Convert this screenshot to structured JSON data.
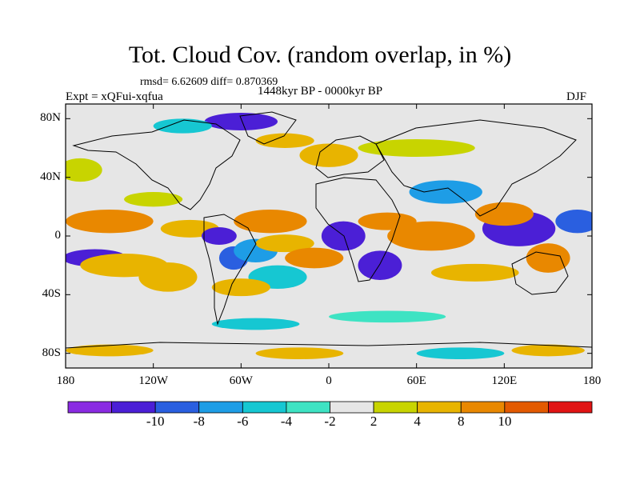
{
  "figure": {
    "title": "Tot. Cloud Cov. (random overlap, in %)",
    "stats": "rmsd= 6.62609 diff= 0.870369",
    "experiment": "Expt = xQFui-xqfua",
    "period": "1448kyr BP - 0000kyr BP",
    "season": "DJF"
  },
  "axes": {
    "lat_ticks": [
      {
        "label": "80N",
        "lat": 80
      },
      {
        "label": "40N",
        "lat": 40
      },
      {
        "label": "0",
        "lat": 0
      },
      {
        "label": "40S",
        "lat": -40
      },
      {
        "label": "80S",
        "lat": -80
      }
    ],
    "lon_ticks": [
      {
        "label": "180",
        "lon": -180
      },
      {
        "label": "120W",
        "lon": -120
      },
      {
        "label": "60W",
        "lon": -60
      },
      {
        "label": "0",
        "lon": 0
      },
      {
        "label": "60E",
        "lon": 60
      },
      {
        "label": "120E",
        "lon": 120
      },
      {
        "label": "180",
        "lon": 180
      }
    ],
    "lat_range": [
      -90,
      90
    ],
    "lon_range": [
      -180,
      180
    ]
  },
  "colorbar": {
    "colors": [
      "#8a2be2",
      "#4b1fd6",
      "#2a5fe0",
      "#1e9de6",
      "#16c7d2",
      "#3ee3c3",
      "#e6e6e6",
      "#c8d400",
      "#e8b400",
      "#e98800",
      "#e35a00",
      "#e11414"
    ],
    "labels": [
      {
        "label": "-10",
        "index": 1
      },
      {
        "label": "-8",
        "index": 2
      },
      {
        "label": "-6",
        "index": 3
      },
      {
        "label": "-4",
        "index": 4
      },
      {
        "label": "-2",
        "index": 5
      },
      {
        "label": "2",
        "index": 6
      },
      {
        "label": "4",
        "index": 7
      },
      {
        "label": "8",
        "index": 8
      },
      {
        "label": "10",
        "index": 9
      }
    ]
  },
  "field_blobs": [
    {
      "lon": -150,
      "lat": 10,
      "rlon": 30,
      "rlat": 8,
      "v": 9
    },
    {
      "lon": -160,
      "lat": -15,
      "rlon": 22,
      "rlat": 6,
      "v": -10
    },
    {
      "lon": -140,
      "lat": -20,
      "rlon": 30,
      "rlat": 8,
      "v": 7
    },
    {
      "lon": -110,
      "lat": -28,
      "rlon": 20,
      "rlat": 10,
      "v": 6
    },
    {
      "lon": -95,
      "lat": 5,
      "rlon": 20,
      "rlat": 6,
      "v": 7
    },
    {
      "lon": -75,
      "lat": 0,
      "rlon": 12,
      "rlat": 6,
      "v": -10
    },
    {
      "lon": -65,
      "lat": -15,
      "rlon": 10,
      "rlat": 8,
      "v": -8
    },
    {
      "lon": -50,
      "lat": -10,
      "rlon": 15,
      "rlat": 8,
      "v": -6
    },
    {
      "lon": -40,
      "lat": 10,
      "rlon": 25,
      "rlat": 8,
      "v": 10
    },
    {
      "lon": -30,
      "lat": -5,
      "rlon": 20,
      "rlat": 6,
      "v": 6
    },
    {
      "lon": -10,
      "lat": -15,
      "rlon": 20,
      "rlat": 7,
      "v": 10
    },
    {
      "lon": -35,
      "lat": -28,
      "rlon": 20,
      "rlat": 8,
      "v": -5
    },
    {
      "lon": -60,
      "lat": -35,
      "rlon": 20,
      "rlat": 6,
      "v": 5
    },
    {
      "lon": 10,
      "lat": 0,
      "rlon": 15,
      "rlat": 10,
      "v": -10
    },
    {
      "lon": 35,
      "lat": -20,
      "rlon": 15,
      "rlat": 10,
      "v": -10
    },
    {
      "lon": 40,
      "lat": 10,
      "rlon": 20,
      "rlat": 6,
      "v": 9
    },
    {
      "lon": 70,
      "lat": 0,
      "rlon": 30,
      "rlat": 10,
      "v": 10
    },
    {
      "lon": 80,
      "lat": 30,
      "rlon": 25,
      "rlat": 8,
      "v": -6
    },
    {
      "lon": 130,
      "lat": 5,
      "rlon": 25,
      "rlat": 12,
      "v": -10
    },
    {
      "lon": 120,
      "lat": 15,
      "rlon": 20,
      "rlat": 8,
      "v": 9
    },
    {
      "lon": 150,
      "lat": -15,
      "rlon": 15,
      "rlat": 10,
      "v": 10
    },
    {
      "lon": 170,
      "lat": 10,
      "rlon": 15,
      "rlat": 8,
      "v": -8
    },
    {
      "lon": 100,
      "lat": -25,
      "rlon": 30,
      "rlat": 6,
      "v": 5
    },
    {
      "lon": -60,
      "lat": 78,
      "rlon": 25,
      "rlat": 6,
      "v": -10
    },
    {
      "lon": -100,
      "lat": 75,
      "rlon": 20,
      "rlat": 5,
      "v": -5
    },
    {
      "lon": -30,
      "lat": 65,
      "rlon": 20,
      "rlat": 5,
      "v": 5
    },
    {
      "lon": 0,
      "lat": 55,
      "rlon": 20,
      "rlat": 8,
      "v": 6
    },
    {
      "lon": 60,
      "lat": 60,
      "rlon": 40,
      "rlat": 6,
      "v": 3
    },
    {
      "lon": -170,
      "lat": 45,
      "rlon": 15,
      "rlat": 8,
      "v": 3
    },
    {
      "lon": -120,
      "lat": 25,
      "rlon": 20,
      "rlat": 5,
      "v": 3
    },
    {
      "lon": -50,
      "lat": -60,
      "rlon": 30,
      "rlat": 4,
      "v": -4
    },
    {
      "lon": 40,
      "lat": -55,
      "rlon": 40,
      "rlat": 4,
      "v": -3
    },
    {
      "lon": -150,
      "lat": -78,
      "rlon": 30,
      "rlat": 4,
      "v": 7
    },
    {
      "lon": -20,
      "lat": -80,
      "rlon": 30,
      "rlat": 4,
      "v": 8
    },
    {
      "lon": 90,
      "lat": -80,
      "rlon": 30,
      "rlat": 4,
      "v": -4
    },
    {
      "lon": 150,
      "lat": -78,
      "rlon": 25,
      "rlat": 4,
      "v": 8
    }
  ]
}
